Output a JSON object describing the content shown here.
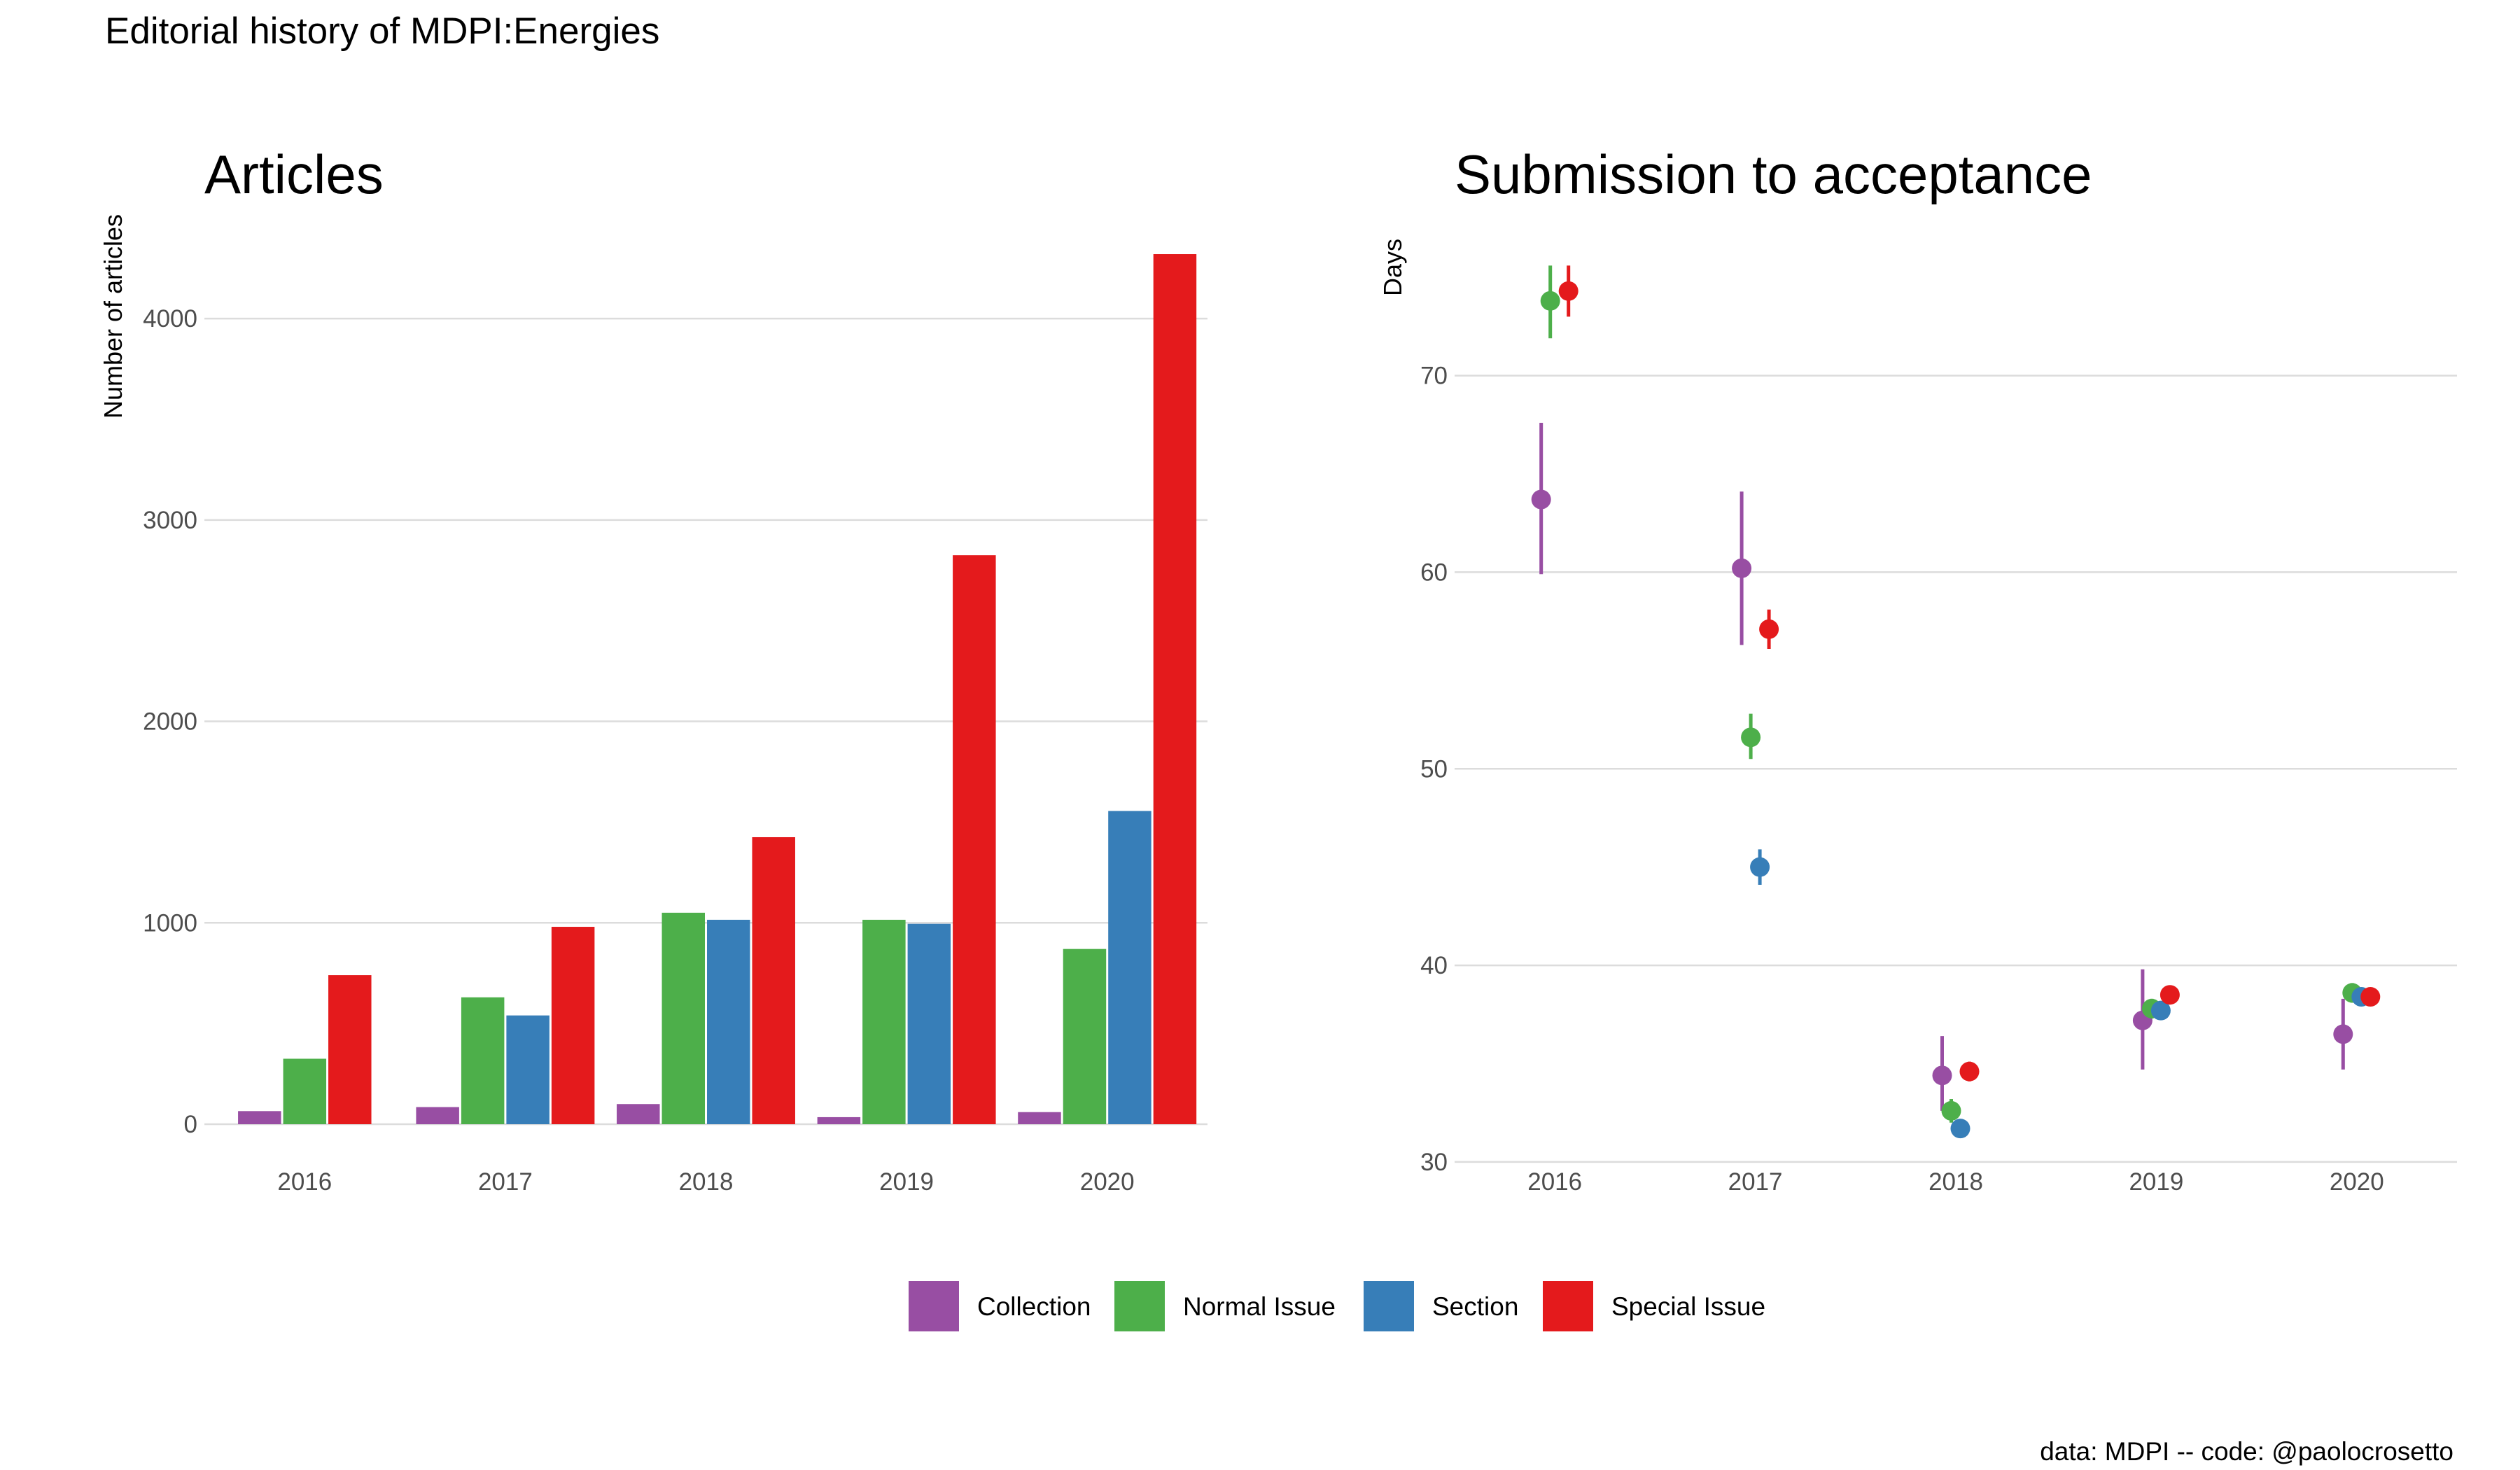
{
  "figure": {
    "title": "Editorial history of MDPI:Energies",
    "caption": "data: MDPI -- code: @paolocrosetto"
  },
  "colors": {
    "Collection": "#984ea3",
    "Normal Issue": "#4daf4a",
    "Section": "#377eb8",
    "Special Issue": "#e41a1c",
    "grid": "#dcdcdc",
    "tick_text": "#4d4d4d"
  },
  "legend": {
    "position": "bottom",
    "items": [
      "Collection",
      "Normal Issue",
      "Section",
      "Special Issue"
    ]
  },
  "chart_data": [
    {
      "type": "bar",
      "title": "Articles",
      "xlabel": "",
      "ylabel": "Number of articles",
      "categories": [
        "2016",
        "2017",
        "2018",
        "2019",
        "2020"
      ],
      "ylim": [
        0,
        4400
      ],
      "yticks": [
        0,
        1000,
        2000,
        3000,
        4000
      ],
      "grid": true,
      "series": [
        {
          "name": "Collection",
          "values": [
            65,
            85,
            100,
            35,
            60
          ]
        },
        {
          "name": "Normal Issue",
          "values": [
            325,
            630,
            1050,
            1015,
            870
          ]
        },
        {
          "name": "Section",
          "values": [
            null,
            540,
            1015,
            995,
            1555
          ]
        },
        {
          "name": "Special Issue",
          "values": [
            740,
            980,
            1425,
            2825,
            4320
          ]
        }
      ]
    },
    {
      "type": "scatter",
      "title": "Submission to acceptance",
      "xlabel": "",
      "ylabel": "Days",
      "categories": [
        "2016",
        "2017",
        "2018",
        "2019",
        "2020"
      ],
      "ylim": [
        29,
        77
      ],
      "yticks": [
        30,
        40,
        50,
        60,
        70
      ],
      "grid": true,
      "series": [
        {
          "name": "Collection",
          "values": [
            63.7,
            60.2,
            34.4,
            37.2,
            36.5
          ],
          "lower": [
            59.9,
            56.3,
            32.6,
            34.7,
            34.7
          ],
          "upper": [
            67.6,
            64.1,
            36.4,
            39.8,
            38.3
          ]
        },
        {
          "name": "Normal Issue",
          "values": [
            73.8,
            51.6,
            32.6,
            37.8,
            38.6
          ],
          "lower": [
            71.9,
            50.5,
            32.0,
            37.3,
            38.1
          ],
          "upper": [
            75.6,
            52.8,
            33.2,
            38.3,
            39.1
          ]
        },
        {
          "name": "Section",
          "values": [
            null,
            45.0,
            31.7,
            37.7,
            38.4
          ],
          "lower": [
            null,
            44.1,
            31.3,
            37.3,
            38.0
          ],
          "upper": [
            null,
            45.9,
            32.1,
            38.1,
            38.8
          ]
        },
        {
          "name": "Special Issue",
          "values": [
            74.3,
            57.1,
            34.6,
            38.5,
            38.4
          ],
          "lower": [
            73.0,
            56.1,
            34.1,
            38.1,
            38.0
          ],
          "upper": [
            75.6,
            58.1,
            35.1,
            38.9,
            38.8
          ]
        }
      ]
    }
  ]
}
